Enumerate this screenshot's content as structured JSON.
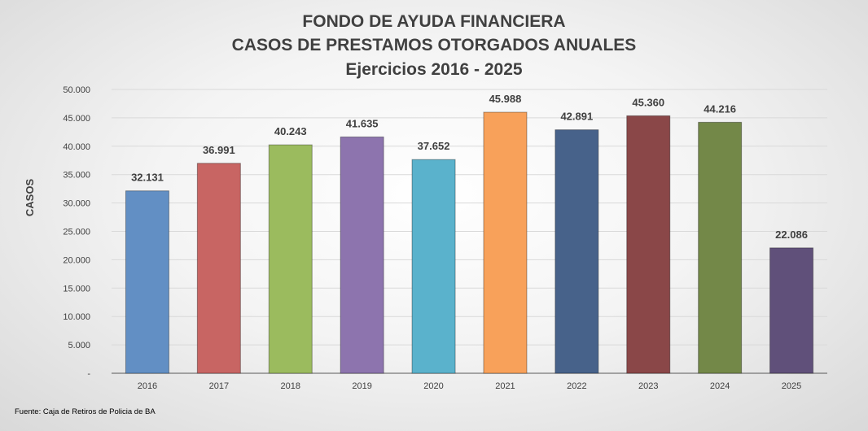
{
  "chart_data": {
    "type": "bar",
    "title_lines": [
      "FONDO DE AYUDA FINANCIERA",
      "CASOS DE PRESTAMOS OTORGADOS ANUALES",
      "Ejercicios 2016 - 2025"
    ],
    "ylabel": "CASOS",
    "xlabel": "",
    "categories": [
      "2016",
      "2017",
      "2018",
      "2019",
      "2020",
      "2021",
      "2022",
      "2023",
      "2024",
      "2025"
    ],
    "values": [
      32131,
      36991,
      40243,
      41635,
      37652,
      45988,
      42891,
      45360,
      44216,
      22086
    ],
    "value_labels": [
      "32.131",
      "36.991",
      "40.243",
      "41.635",
      "37.652",
      "45.988",
      "42.891",
      "45.360",
      "44.216",
      "22.086"
    ],
    "colors": [
      "#628fc4",
      "#c86563",
      "#9bbb5e",
      "#8d74ae",
      "#5ab2cc",
      "#f8a15a",
      "#47628a",
      "#8a4748",
      "#738848",
      "#60507a"
    ],
    "ylim": [
      0,
      50000
    ],
    "yticks": [
      0,
      5000,
      10000,
      15000,
      20000,
      25000,
      30000,
      35000,
      40000,
      45000,
      50000
    ],
    "ytick_labels": [
      "-",
      "5.000",
      "10.000",
      "15.000",
      "20.000",
      "25.000",
      "30.000",
      "35.000",
      "40.000",
      "45.000",
      "50.000"
    ],
    "grid": true,
    "legend": "none"
  },
  "source": "Fuente: Caja de Retiros de Policia de BA"
}
